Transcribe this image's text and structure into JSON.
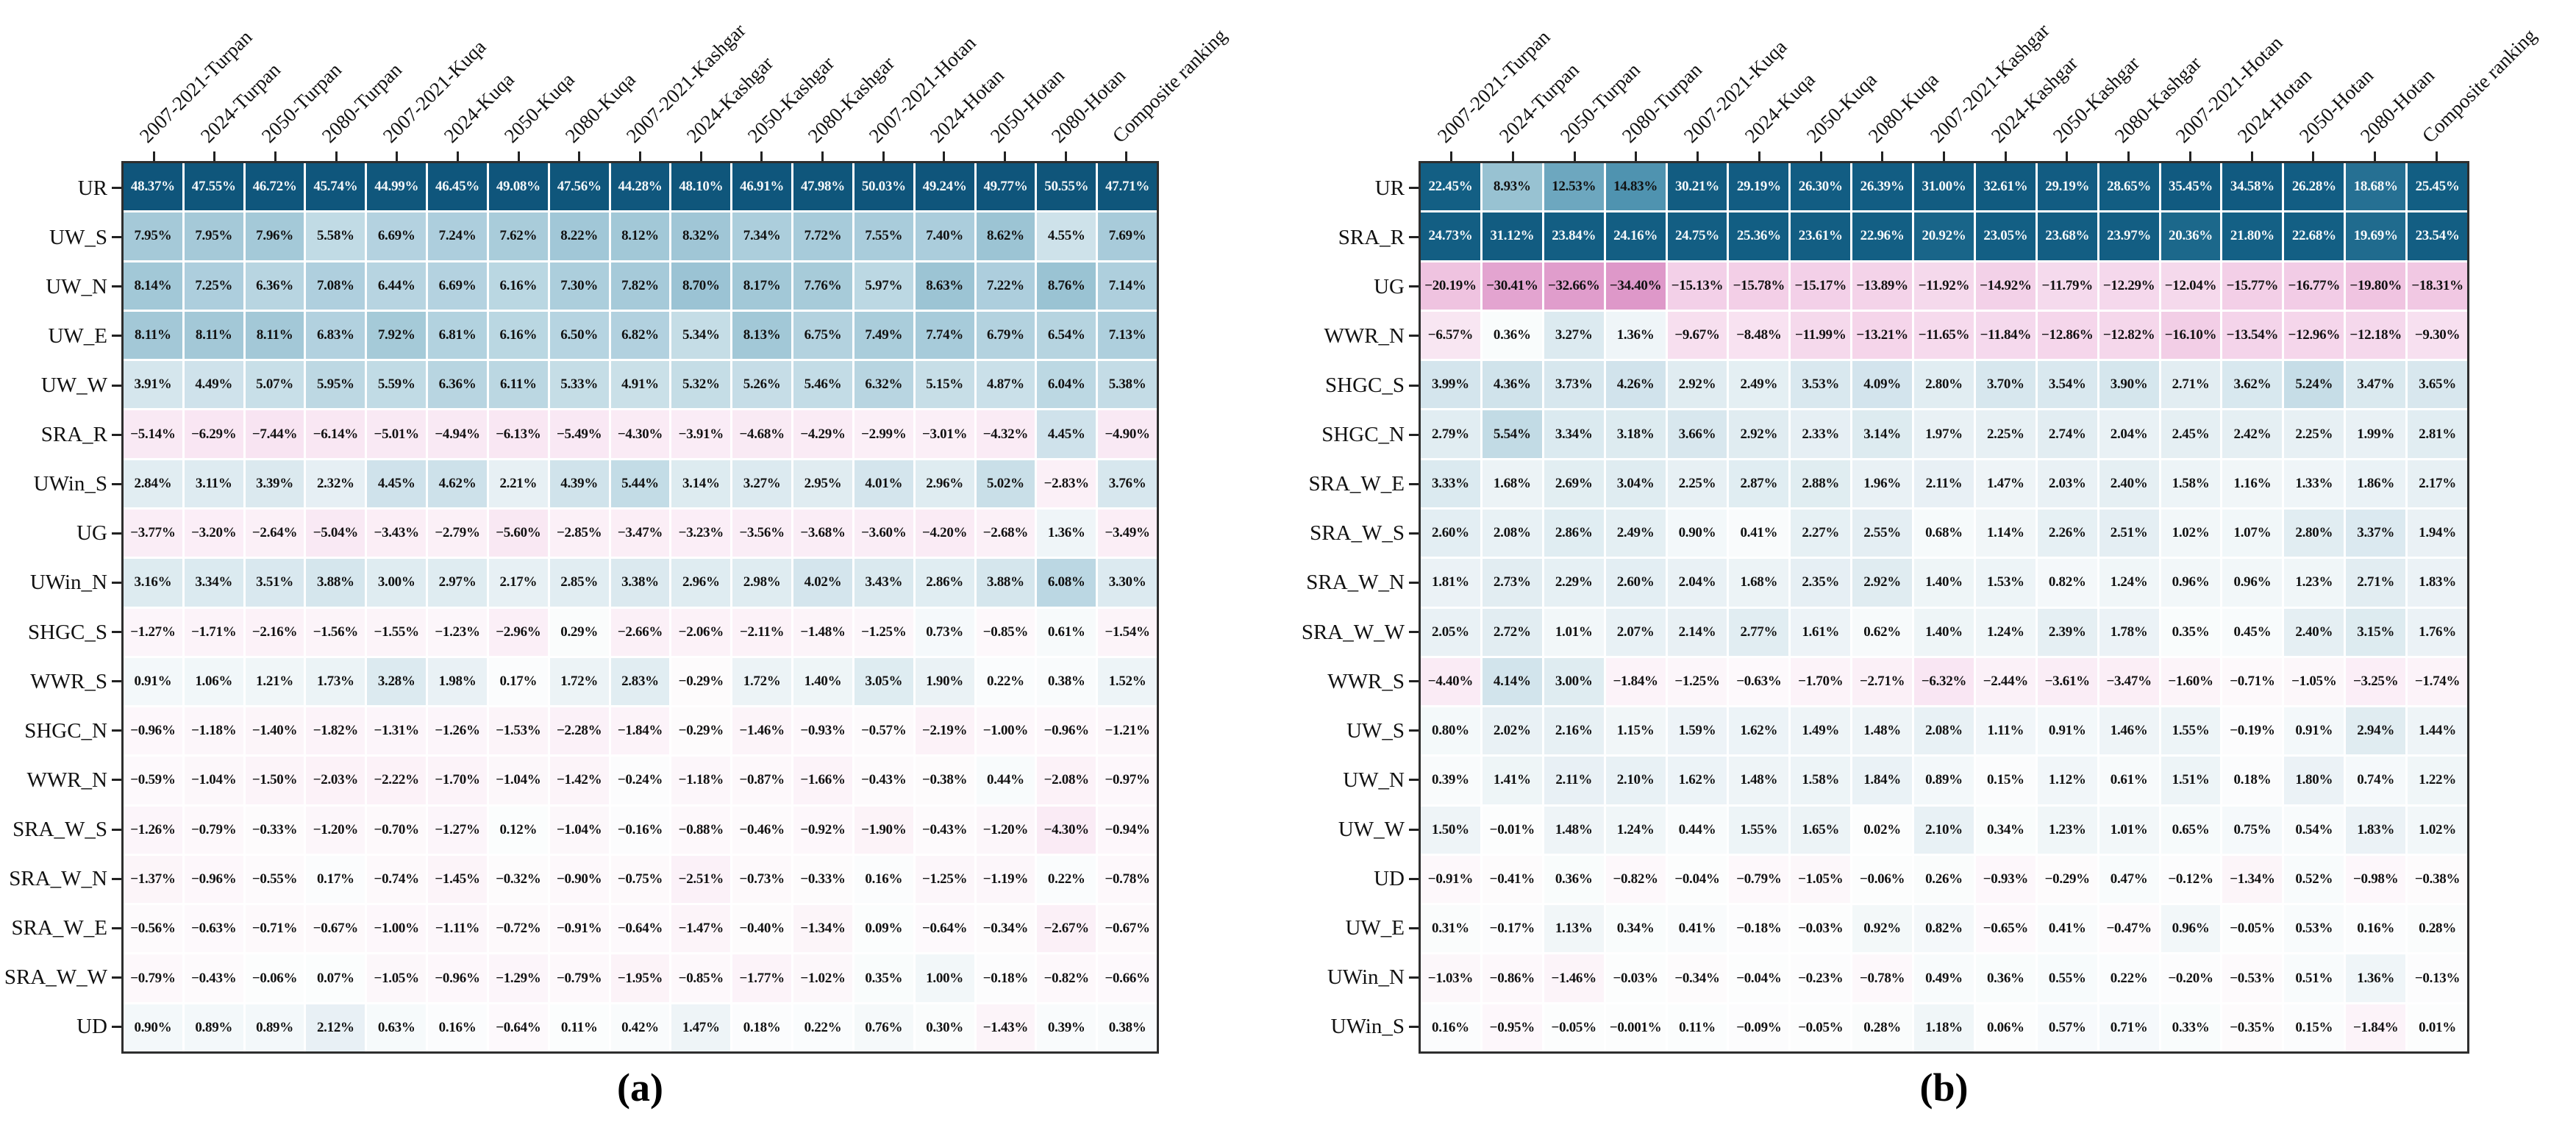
{
  "figure": {
    "background": "#ffffff",
    "captions": {
      "a": "(a)",
      "b": "(b)"
    }
  },
  "style": {
    "border_color": "#2e2e2e",
    "gap_color": "#ffffff",
    "text_dark": "#111111",
    "text_light": "#f4f8fa",
    "light_text_threshold": 17,
    "color_stops": [
      [
        -35,
        "#dd96c8"
      ],
      [
        -30,
        "#e4a5d1"
      ],
      [
        -24,
        "#ecb8da"
      ],
      [
        -18,
        "#f1c9e4"
      ],
      [
        -14,
        "#f4d3e9"
      ],
      [
        -11,
        "#f6dcee"
      ],
      [
        -8,
        "#f8e3f1"
      ],
      [
        -5,
        "#f9e9f4"
      ],
      [
        -3,
        "#fbeff7"
      ],
      [
        -1.5,
        "#fcf4f9"
      ],
      [
        -0.5,
        "#fdfafc"
      ],
      [
        0,
        "#fcfdfd"
      ],
      [
        0.5,
        "#f8fbfc"
      ],
      [
        1,
        "#f2f7f9"
      ],
      [
        2,
        "#e9f1f5"
      ],
      [
        3,
        "#dfecf1"
      ],
      [
        4,
        "#d4e5ed"
      ],
      [
        5,
        "#c9dfe8"
      ],
      [
        6,
        "#bcd8e3"
      ],
      [
        7,
        "#b0d0de"
      ],
      [
        8,
        "#a4c9d8"
      ],
      [
        9,
        "#97c1d2"
      ],
      [
        10.5,
        "#85b6ca"
      ],
      [
        12.5,
        "#6da7bf"
      ],
      [
        15,
        "#4d92af"
      ],
      [
        18,
        "#2a7496"
      ],
      [
        22,
        "#135f84"
      ],
      [
        55,
        "#0e5379"
      ]
    ]
  },
  "chart_data": [
    {
      "type": "heatmap",
      "id": "a",
      "caption": "(a)",
      "legend_position": "none",
      "grid": "white-gaps",
      "columns": [
        "2007-2021-Turpan",
        "2024-Turpan",
        "2050-Turpan",
        "2080-Turpan",
        "2007-2021-Kuqa",
        "2024-Kuqa",
        "2050-Kuqa",
        "2080-Kuqa",
        "2007-2021-Kashgar",
        "2024-Kashgar",
        "2050-Kashgar",
        "2080-Kashgar",
        "2007-2021-Hotan",
        "2024-Hotan",
        "2050-Hotan",
        "2080-Hotan",
        "Composite ranking"
      ],
      "rows": [
        "UR",
        "UW_S",
        "UW_N",
        "UW_E",
        "UW_W",
        "SRA_R",
        "UWin_S",
        "UG",
        "UWin_N",
        "SHGC_S",
        "WWR_S",
        "SHGC_N",
        "WWR_N",
        "SRA_W_S",
        "SRA_W_N",
        "SRA_W_E",
        "SRA_W_W",
        "UD"
      ],
      "values_pct": [
        [
          "48.37%",
          "47.55%",
          "46.72%",
          "45.74%",
          "44.99%",
          "46.45%",
          "49.08%",
          "47.56%",
          "44.28%",
          "48.10%",
          "46.91%",
          "47.98%",
          "50.03%",
          "49.24%",
          "49.77%",
          "50.55%",
          "47.71%"
        ],
        [
          "7.95%",
          "7.95%",
          "7.96%",
          "5.58%",
          "6.69%",
          "7.24%",
          "7.62%",
          "8.22%",
          "8.12%",
          "8.32%",
          "7.34%",
          "7.72%",
          "7.55%",
          "7.40%",
          "8.62%",
          "4.55%",
          "7.69%"
        ],
        [
          "8.14%",
          "7.25%",
          "6.36%",
          "7.08%",
          "6.44%",
          "6.69%",
          "6.16%",
          "7.30%",
          "7.82%",
          "8.70%",
          "8.17%",
          "7.76%",
          "5.97%",
          "8.63%",
          "7.22%",
          "8.76%",
          "7.14%"
        ],
        [
          "8.11%",
          "8.11%",
          "8.11%",
          "6.83%",
          "7.92%",
          "6.81%",
          "6.16%",
          "6.50%",
          "6.82%",
          "5.34%",
          "8.13%",
          "6.75%",
          "7.49%",
          "7.74%",
          "6.79%",
          "6.54%",
          "7.13%"
        ],
        [
          "3.91%",
          "4.49%",
          "5.07%",
          "5.95%",
          "5.59%",
          "6.36%",
          "6.11%",
          "5.33%",
          "4.91%",
          "5.32%",
          "5.26%",
          "5.46%",
          "6.32%",
          "5.15%",
          "4.87%",
          "6.04%",
          "5.38%"
        ],
        [
          "-5.14%",
          "-6.29%",
          "-7.44%",
          "-6.14%",
          "-5.01%",
          "-4.94%",
          "-6.13%",
          "-5.49%",
          "-4.30%",
          "-3.91%",
          "-4.68%",
          "-4.29%",
          "-2.99%",
          "-3.01%",
          "-4.32%",
          "4.45%",
          "-4.90%"
        ],
        [
          "2.84%",
          "3.11%",
          "3.39%",
          "2.32%",
          "4.45%",
          "4.62%",
          "2.21%",
          "4.39%",
          "5.44%",
          "3.14%",
          "3.27%",
          "2.95%",
          "4.01%",
          "2.96%",
          "5.02%",
          "-2.83%",
          "3.76%"
        ],
        [
          "-3.77%",
          "-3.20%",
          "-2.64%",
          "-5.04%",
          "-3.43%",
          "-2.79%",
          "-5.60%",
          "-2.85%",
          "-3.47%",
          "-3.23%",
          "-3.56%",
          "-3.68%",
          "-3.60%",
          "-4.20%",
          "-2.68%",
          "1.36%",
          "-3.49%"
        ],
        [
          "3.16%",
          "3.34%",
          "3.51%",
          "3.88%",
          "3.00%",
          "2.97%",
          "2.17%",
          "2.85%",
          "3.38%",
          "2.96%",
          "2.98%",
          "4.02%",
          "3.43%",
          "2.86%",
          "3.88%",
          "6.08%",
          "3.30%"
        ],
        [
          "-1.27%",
          "-1.71%",
          "-2.16%",
          "-1.56%",
          "-1.55%",
          "-1.23%",
          "-2.96%",
          "0.29%",
          "-2.66%",
          "-2.06%",
          "-2.11%",
          "-1.48%",
          "-1.25%",
          "0.73%",
          "-0.85%",
          "0.61%",
          "-1.54%"
        ],
        [
          "0.91%",
          "1.06%",
          "1.21%",
          "1.73%",
          "3.28%",
          "1.98%",
          "0.17%",
          "1.72%",
          "2.83%",
          "-0.29%",
          "1.72%",
          "1.40%",
          "3.05%",
          "1.90%",
          "0.22%",
          "0.38%",
          "1.52%"
        ],
        [
          "-0.96%",
          "-1.18%",
          "-1.40%",
          "-1.82%",
          "-1.31%",
          "-1.26%",
          "-1.53%",
          "-2.28%",
          "-1.84%",
          "-0.29%",
          "-1.46%",
          "-0.93%",
          "-0.57%",
          "-2.19%",
          "-1.00%",
          "-0.96%",
          "-1.21%"
        ],
        [
          "-0.59%",
          "-1.04%",
          "-1.50%",
          "-2.03%",
          "-2.22%",
          "-1.70%",
          "-1.04%",
          "-1.42%",
          "-0.24%",
          "-1.18%",
          "-0.87%",
          "-1.66%",
          "-0.43%",
          "-0.38%",
          "0.44%",
          "-2.08%",
          "-0.97%"
        ],
        [
          "-1.26%",
          "-0.79%",
          "-0.33%",
          "-1.20%",
          "-0.70%",
          "-1.27%",
          "0.12%",
          "-1.04%",
          "-0.16%",
          "-0.88%",
          "-0.46%",
          "-0.92%",
          "-1.90%",
          "-0.43%",
          "-1.20%",
          "-4.30%",
          "-0.94%"
        ],
        [
          "-1.37%",
          "-0.96%",
          "-0.55%",
          "0.17%",
          "-0.74%",
          "-1.45%",
          "-0.32%",
          "-0.90%",
          "-0.75%",
          "-2.51%",
          "-0.73%",
          "-0.33%",
          "0.16%",
          "-1.25%",
          "-1.19%",
          "0.22%",
          "-0.78%"
        ],
        [
          "-0.56%",
          "-0.63%",
          "-0.71%",
          "-0.67%",
          "-1.00%",
          "-1.11%",
          "-0.72%",
          "-0.91%",
          "-0.64%",
          "-1.47%",
          "-0.40%",
          "-1.34%",
          "0.09%",
          "-0.64%",
          "-0.34%",
          "-2.67%",
          "-0.67%"
        ],
        [
          "-0.79%",
          "-0.43%",
          "-0.06%",
          "0.07%",
          "-1.05%",
          "-0.96%",
          "-1.29%",
          "-0.79%",
          "-1.95%",
          "-0.85%",
          "-1.77%",
          "-1.02%",
          "0.35%",
          "1.00%",
          "-0.18%",
          "-0.82%",
          "-0.66%"
        ],
        [
          "0.90%",
          "0.89%",
          "0.89%",
          "2.12%",
          "0.63%",
          "0.16%",
          "-0.64%",
          "0.11%",
          "0.42%",
          "1.47%",
          "0.18%",
          "0.22%",
          "0.76%",
          "0.30%",
          "-1.43%",
          "0.39%",
          "0.38%"
        ]
      ]
    },
    {
      "type": "heatmap",
      "id": "b",
      "caption": "(b)",
      "legend_position": "none",
      "grid": "white-gaps",
      "columns": [
        "2007-2021-Turpan",
        "2024-Turpan",
        "2050-Turpan",
        "2080-Turpan",
        "2007-2021-Kuqa",
        "2024-Kuqa",
        "2050-Kuqa",
        "2080-Kuqa",
        "2007-2021-Kashgar",
        "2024-Kashgar",
        "2050-Kashgar",
        "2080-Kashgar",
        "2007-2021-Hotan",
        "2024-Hotan",
        "2050-Hotan",
        "2080-Hotan",
        "Composite ranking"
      ],
      "rows": [
        "UR",
        "SRA_R",
        "UG",
        "WWR_N",
        "SHGC_S",
        "SHGC_N",
        "SRA_W_E",
        "SRA_W_S",
        "SRA_W_N",
        "SRA_W_W",
        "WWR_S",
        "UW_S",
        "UW_N",
        "UW_W",
        "UD",
        "UW_E",
        "UWin_N",
        "UWin_S"
      ],
      "values_pct": [
        [
          "22.45%",
          "8.93%",
          "12.53%",
          "14.83%",
          "30.21%",
          "29.19%",
          "26.30%",
          "26.39%",
          "31.00%",
          "32.61%",
          "29.19%",
          "28.65%",
          "35.45%",
          "34.58%",
          "26.28%",
          "18.68%",
          "25.45%"
        ],
        [
          "24.73%",
          "31.12%",
          "23.84%",
          "24.16%",
          "24.75%",
          "25.36%",
          "23.61%",
          "22.96%",
          "20.92%",
          "23.05%",
          "23.68%",
          "23.97%",
          "20.36%",
          "21.80%",
          "22.68%",
          "19.69%",
          "23.54%"
        ],
        [
          "-20.19%",
          "-30.41%",
          "-32.66%",
          "-34.40%",
          "-15.13%",
          "-15.78%",
          "-15.17%",
          "-13.89%",
          "-11.92%",
          "-14.92%",
          "-11.79%",
          "-12.29%",
          "-12.04%",
          "-15.77%",
          "-16.77%",
          "-19.80%",
          "-18.31%"
        ],
        [
          "-6.57%",
          "0.36%",
          "3.27%",
          "1.36%",
          "-9.67%",
          "-8.48%",
          "-11.99%",
          "-13.21%",
          "-11.65%",
          "-11.84%",
          "-12.86%",
          "-12.82%",
          "-16.10%",
          "-13.54%",
          "-12.96%",
          "-12.18%",
          "-9.30%"
        ],
        [
          "3.99%",
          "4.36%",
          "3.73%",
          "4.26%",
          "2.92%",
          "2.49%",
          "3.53%",
          "4.09%",
          "2.80%",
          "3.70%",
          "3.54%",
          "3.90%",
          "2.71%",
          "3.62%",
          "5.24%",
          "3.47%",
          "3.65%"
        ],
        [
          "2.79%",
          "5.54%",
          "3.34%",
          "3.18%",
          "3.66%",
          "2.92%",
          "2.33%",
          "3.14%",
          "1.97%",
          "2.25%",
          "2.74%",
          "2.04%",
          "2.45%",
          "2.42%",
          "2.25%",
          "1.99%",
          "2.81%"
        ],
        [
          "3.33%",
          "1.68%",
          "2.69%",
          "3.04%",
          "2.25%",
          "2.87%",
          "2.88%",
          "1.96%",
          "2.11%",
          "1.47%",
          "2.03%",
          "2.40%",
          "1.58%",
          "1.16%",
          "1.33%",
          "1.86%",
          "2.17%"
        ],
        [
          "2.60%",
          "2.08%",
          "2.86%",
          "2.49%",
          "0.90%",
          "0.41%",
          "2.27%",
          "2.55%",
          "0.68%",
          "1.14%",
          "2.26%",
          "2.51%",
          "1.02%",
          "1.07%",
          "2.80%",
          "3.37%",
          "1.94%"
        ],
        [
          "1.81%",
          "2.73%",
          "2.29%",
          "2.60%",
          "2.04%",
          "1.68%",
          "2.35%",
          "2.92%",
          "1.40%",
          "1.53%",
          "0.82%",
          "1.24%",
          "0.96%",
          "0.96%",
          "1.23%",
          "2.71%",
          "1.83%"
        ],
        [
          "2.05%",
          "2.72%",
          "1.01%",
          "2.07%",
          "2.14%",
          "2.77%",
          "1.61%",
          "0.62%",
          "1.40%",
          "1.24%",
          "2.39%",
          "1.78%",
          "0.35%",
          "0.45%",
          "2.40%",
          "3.15%",
          "1.76%"
        ],
        [
          "-4.40%",
          "4.14%",
          "3.00%",
          "-1.84%",
          "-1.25%",
          "-0.63%",
          "-1.70%",
          "-2.71%",
          "-6.32%",
          "-2.44%",
          "-3.61%",
          "-3.47%",
          "-1.60%",
          "-0.71%",
          "-1.05%",
          "-3.25%",
          "-1.74%"
        ],
        [
          "0.80%",
          "2.02%",
          "2.16%",
          "1.15%",
          "1.59%",
          "1.62%",
          "1.49%",
          "1.48%",
          "2.08%",
          "1.11%",
          "0.91%",
          "1.46%",
          "1.55%",
          "-0.19%",
          "0.91%",
          "2.94%",
          "1.44%"
        ],
        [
          "0.39%",
          "1.41%",
          "2.11%",
          "2.10%",
          "1.62%",
          "1.48%",
          "1.58%",
          "1.84%",
          "0.89%",
          "0.15%",
          "1.12%",
          "0.61%",
          "1.51%",
          "0.18%",
          "1.80%",
          "0.74%",
          "1.22%"
        ],
        [
          "1.50%",
          "-0.01%",
          "1.48%",
          "1.24%",
          "0.44%",
          "1.55%",
          "1.65%",
          "0.02%",
          "2.10%",
          "0.34%",
          "1.23%",
          "1.01%",
          "0.65%",
          "0.75%",
          "0.54%",
          "1.83%",
          "1.02%"
        ],
        [
          "-0.91%",
          "-0.41%",
          "0.36%",
          "-0.82%",
          "-0.04%",
          "-0.79%",
          "-1.05%",
          "-0.06%",
          "0.26%",
          "-0.93%",
          "-0.29%",
          "0.47%",
          "-0.12%",
          "-1.34%",
          "0.52%",
          "-0.98%",
          "-0.38%"
        ],
        [
          "0.31%",
          "-0.17%",
          "1.13%",
          "0.34%",
          "0.41%",
          "-0.18%",
          "-0.03%",
          "0.92%",
          "0.82%",
          "-0.65%",
          "0.41%",
          "-0.47%",
          "0.96%",
          "-0.05%",
          "0.53%",
          "0.16%",
          "0.28%"
        ],
        [
          "-1.03%",
          "-0.86%",
          "-1.46%",
          "-0.03%",
          "-0.34%",
          "-0.04%",
          "-0.23%",
          "-0.78%",
          "0.49%",
          "0.36%",
          "0.55%",
          "0.22%",
          "-0.20%",
          "-0.53%",
          "0.51%",
          "1.36%",
          "-0.13%"
        ],
        [
          "0.16%",
          "-0.95%",
          "-0.05%",
          "-0.001%",
          "0.11%",
          "-0.09%",
          "-0.05%",
          "0.28%",
          "1.18%",
          "0.06%",
          "0.57%",
          "0.71%",
          "0.33%",
          "-0.35%",
          "0.15%",
          "-1.84%",
          "0.01%"
        ]
      ]
    }
  ]
}
